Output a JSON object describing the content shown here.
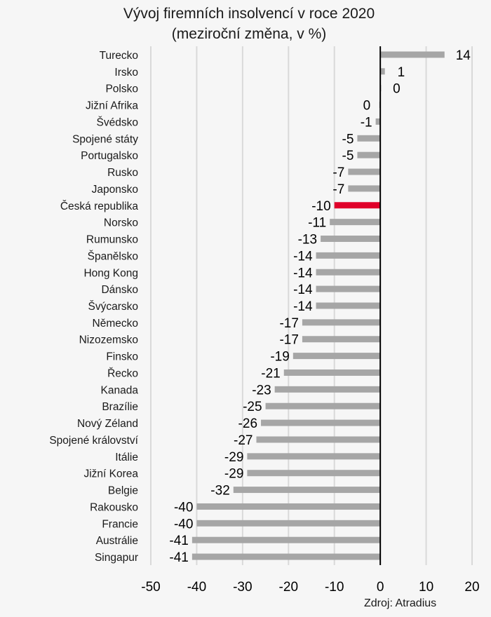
{
  "chart_data": {
    "type": "bar",
    "orientation": "horizontal",
    "title": "Vývoj firemních insolvencí v roce 2020",
    "subtitle": "(meziroční změna, v %)",
    "xlabel": "",
    "ylabel": "",
    "xlim": [
      -50,
      20
    ],
    "xticks": [
      -50,
      -40,
      -30,
      -20,
      -10,
      0,
      10,
      20
    ],
    "xtick_labels": [
      "-50",
      "-40",
      "-30",
      "-20",
      "-10",
      "0",
      "10",
      "20"
    ],
    "grid": true,
    "categories": [
      "Turecko",
      "Irsko",
      "Polsko",
      "Jižní Afrika",
      "Švédsko",
      "Spojené státy",
      "Portugalsko",
      "Rusko",
      "Japonsko",
      "Česká republika",
      "Norsko",
      "Rumunsko",
      "Španělsko",
      "Hong Kong",
      "Dánsko",
      "Švýcarsko",
      "Německo",
      "Nizozemsko",
      "Finsko",
      "Řecko",
      "Kanada",
      "Brazílie",
      "Nový Zéland",
      "Spojené království",
      "Itálie",
      "Jižní Korea",
      "Belgie",
      "Rakousko",
      "Francie",
      "Austrálie",
      "Singapur"
    ],
    "values": [
      14,
      1,
      0.2,
      -0.2,
      -1,
      -5,
      -5,
      -7,
      -7,
      -10,
      -11,
      -13,
      -14,
      -14,
      -14,
      -14,
      -17,
      -17,
      -19,
      -21,
      -23,
      -25,
      -26,
      -27,
      -29,
      -29,
      -32,
      -40,
      -40,
      -41,
      -41
    ],
    "data_labels": [
      "14",
      "1",
      "0",
      "0",
      "-1",
      "-5",
      "-5",
      "-7",
      "-7",
      "-10",
      "-11",
      "-13",
      "-14",
      "-14",
      "-14",
      "-14",
      "-17",
      "-17",
      "-19",
      "-21",
      "-23",
      "-25",
      "-26",
      "-27",
      "-29",
      "-29",
      "-32",
      "-40",
      "-40",
      "-41",
      "-41"
    ],
    "highlight_category": "Česká republika",
    "colors": {
      "bar": "#a6a6a6",
      "highlight": "#e0002a",
      "axis": "#000000",
      "grid": "#d9d9d9"
    },
    "source": "Zdroj: Atradius"
  }
}
